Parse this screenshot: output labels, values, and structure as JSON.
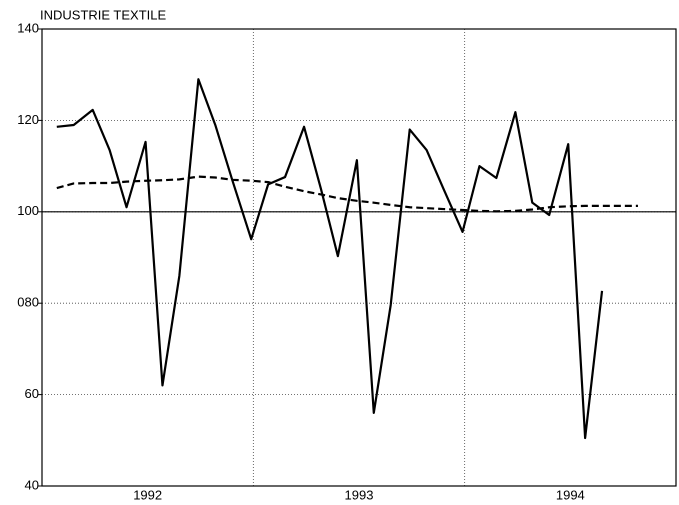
{
  "chart_data": {
    "type": "line",
    "title": "INDUSTRIE TEXTILE",
    "x": [
      1992.07,
      1992.15,
      1992.24,
      1992.32,
      1992.4,
      1992.49,
      1992.57,
      1992.65,
      1992.74,
      1992.82,
      1992.9,
      1992.99,
      1993.07,
      1993.15,
      1993.24,
      1993.32,
      1993.4,
      1993.49,
      1993.57,
      1993.65,
      1993.74,
      1993.82,
      1993.9,
      1993.99,
      1994.07,
      1994.15,
      1994.24,
      1994.32,
      1994.4,
      1994.49,
      1994.57,
      1994.65,
      1994.74,
      1994.82
    ],
    "series": [
      {
        "color": "#000",
        "dash": false,
        "values": [
          118.6,
          119,
          122.3,
          113.5,
          101,
          115.3,
          62,
          86,
          129,
          119,
          107,
          94,
          106,
          107.6,
          118.6,
          105,
          90.3,
          111.3,
          56,
          79.6,
          118,
          113.5,
          105,
          95.6,
          110,
          107.4,
          121.8,
          102,
          99.3,
          114.8,
          50.5,
          82.7,
          null,
          null
        ]
      },
      {
        "color": "#000",
        "dash": true,
        "values": [
          105.2,
          106.2,
          106.3,
          106.3,
          106.6,
          106.8,
          106.9,
          107.1,
          107.7,
          107.5,
          107.0,
          106.8,
          106.5,
          105.5,
          104.5,
          103.8,
          103.0,
          102.4,
          102.0,
          101.5,
          101.0,
          100.8,
          100.6,
          100.4,
          100.2,
          100.1,
          100.2,
          100.5,
          101.0,
          101.2,
          101.3,
          101.3,
          101.3,
          101.3
        ]
      }
    ],
    "xlim": [
      1992,
      1995
    ],
    "xticks": [
      {
        "value": 1992.5,
        "label": "1992"
      },
      {
        "value": 1993.5,
        "label": "1993"
      },
      {
        "value": 1994.5,
        "label": "1994"
      }
    ],
    "x_grid_lines": [
      1993,
      1994
    ],
    "ylim": [
      40,
      140
    ],
    "yticks": [
      40,
      60,
      {
        "value": 80,
        "label": "080"
      },
      100,
      120,
      140
    ],
    "reference_line": 100,
    "grid": true
  }
}
